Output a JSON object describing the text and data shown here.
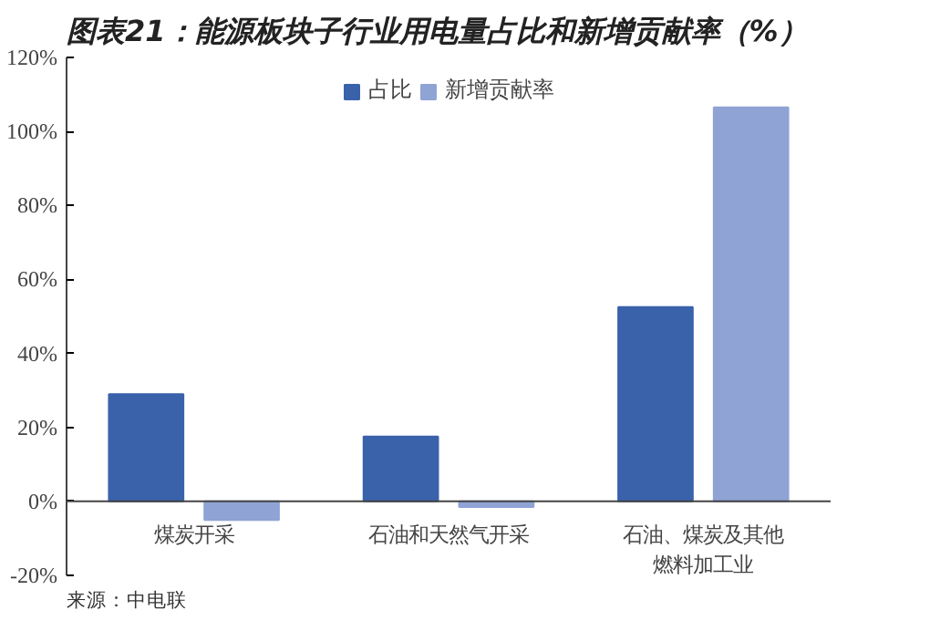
{
  "chart_data": {
    "type": "bar",
    "title": "图表21：能源板块子行业用电量占比和新增贡献率（%）",
    "categories": [
      "煤炭开采",
      "石油和天然气开采",
      "石油、煤炭及其他燃料加工业"
    ],
    "series": [
      {
        "name": "占比",
        "color": "#3a62ab",
        "values": [
          29,
          17.5,
          52.5
        ]
      },
      {
        "name": "新增贡献率",
        "color": "#8fa3d4",
        "values": [
          -5,
          -1.5,
          106.5
        ]
      }
    ],
    "ylim": [
      -20,
      120
    ],
    "yticks": [
      {
        "value": -20,
        "label": "-20%"
      },
      {
        "value": 0,
        "label": "0%"
      },
      {
        "value": 20,
        "label": "20%"
      },
      {
        "value": 40,
        "label": "40%"
      },
      {
        "value": 60,
        "label": "60%"
      },
      {
        "value": 80,
        "label": "80%"
      },
      {
        "value": 100,
        "label": "100%"
      },
      {
        "value": 120,
        "label": "120%"
      }
    ],
    "legend": "top",
    "grid": false,
    "annotations": [
      "来源：中电联"
    ]
  }
}
